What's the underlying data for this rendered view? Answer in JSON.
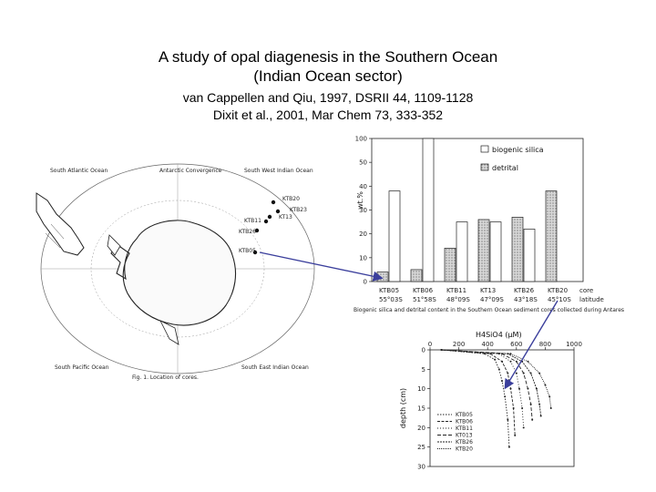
{
  "slide": {
    "title_line1": "A study of opal diagenesis in the Southern Ocean",
    "title_line2": "(Indian Ocean sector)",
    "ref_line1": "van Cappellen and Qiu, 1997, DSRII 44, 1109-1128",
    "ref_line2": "Dixit et al., 2001, Mar Chem 73, 333-352"
  },
  "map": {
    "labels": {
      "south_atlantic": "South Atlantic Ocean",
      "antarctic_convergence": "Antarctic Convergence",
      "south_west_indian": "South West Indian Ocean",
      "south_pacific": "South Pacific Ocean",
      "south_east_indian": "South East Indian Ocean",
      "caption": "Fig. 1.   Location of cores."
    },
    "stations": [
      "KTB20",
      "KTB23",
      "KTB11",
      "KT13",
      "KTB26",
      "KTB05"
    ]
  },
  "chart_data": [
    {
      "type": "bar",
      "ylabel": "wt.%",
      "ytick_labels": [
        "0",
        "10",
        "20",
        "30",
        "40",
        "50",
        "100"
      ],
      "legend": [
        "biogenic silica",
        "detrital"
      ],
      "categories": [
        "KTB05",
        "KTB06",
        "KTB11",
        "KT13",
        "KTB26",
        "KTB20"
      ],
      "category_sublabels": [
        "55°03S",
        "51°58S",
        "48°09S",
        "47°09S",
        "43°18S",
        "45°10S"
      ],
      "axis_end_labels": [
        "core",
        "latitude"
      ],
      "series": [
        {
          "name": "biogenic silica",
          "values": [
            38,
            95,
            25,
            25,
            22,
            0
          ]
        },
        {
          "name": "detrital",
          "values": [
            4,
            5,
            14,
            26,
            27,
            38
          ]
        }
      ],
      "caption": "Biogenic silica and detrital content in the Southern Ocean sediment cores collected during Antares"
    },
    {
      "type": "line",
      "title": "H4SiO4 (µM)",
      "ylabel": "depth (cm)",
      "xlim": [
        0,
        1000
      ],
      "ylim": [
        0,
        30
      ],
      "xtick_labels": [
        "0",
        "200",
        "400",
        "600",
        "800",
        "1000"
      ],
      "ytick_labels": [
        "0",
        "5",
        "10",
        "15",
        "20",
        "25",
        "30"
      ],
      "legend": [
        "KTB05",
        "KTB06",
        "KTB11",
        "KT013",
        "KTB26",
        "KTB20"
      ],
      "series": [
        {
          "name": "KTB05",
          "points": [
            [
              80,
              0
            ],
            [
              380,
              1
            ],
            [
              450,
              2.5
            ],
            [
              480,
              5
            ],
            [
              500,
              8
            ],
            [
              520,
              12
            ],
            [
              540,
              18
            ],
            [
              550,
              25
            ]
          ]
        },
        {
          "name": "KTB06",
          "points": [
            [
              80,
              0
            ],
            [
              420,
              1
            ],
            [
              500,
              3
            ],
            [
              540,
              6
            ],
            [
              560,
              10
            ],
            [
              580,
              15
            ],
            [
              590,
              22
            ]
          ]
        },
        {
          "name": "KTB11",
          "points": [
            [
              80,
              0
            ],
            [
              480,
              1
            ],
            [
              560,
              3
            ],
            [
              600,
              6
            ],
            [
              620,
              10
            ],
            [
              640,
              15
            ],
            [
              650,
              20
            ]
          ]
        },
        {
          "name": "KT013",
          "points": [
            [
              80,
              0
            ],
            [
              500,
              1
            ],
            [
              600,
              3
            ],
            [
              650,
              6
            ],
            [
              680,
              10
            ],
            [
              700,
              14
            ],
            [
              710,
              18
            ]
          ]
        },
        {
          "name": "KTB26",
          "points": [
            [
              80,
              0
            ],
            [
              540,
              1
            ],
            [
              640,
              3
            ],
            [
              700,
              6
            ],
            [
              740,
              10
            ],
            [
              760,
              14
            ],
            [
              770,
              17
            ]
          ]
        },
        {
          "name": "KTB20",
          "points": [
            [
              80,
              0
            ],
            [
              560,
              1
            ],
            [
              680,
              3
            ],
            [
              760,
              6
            ],
            [
              800,
              9
            ],
            [
              830,
              12
            ],
            [
              840,
              15
            ]
          ]
        }
      ]
    }
  ]
}
